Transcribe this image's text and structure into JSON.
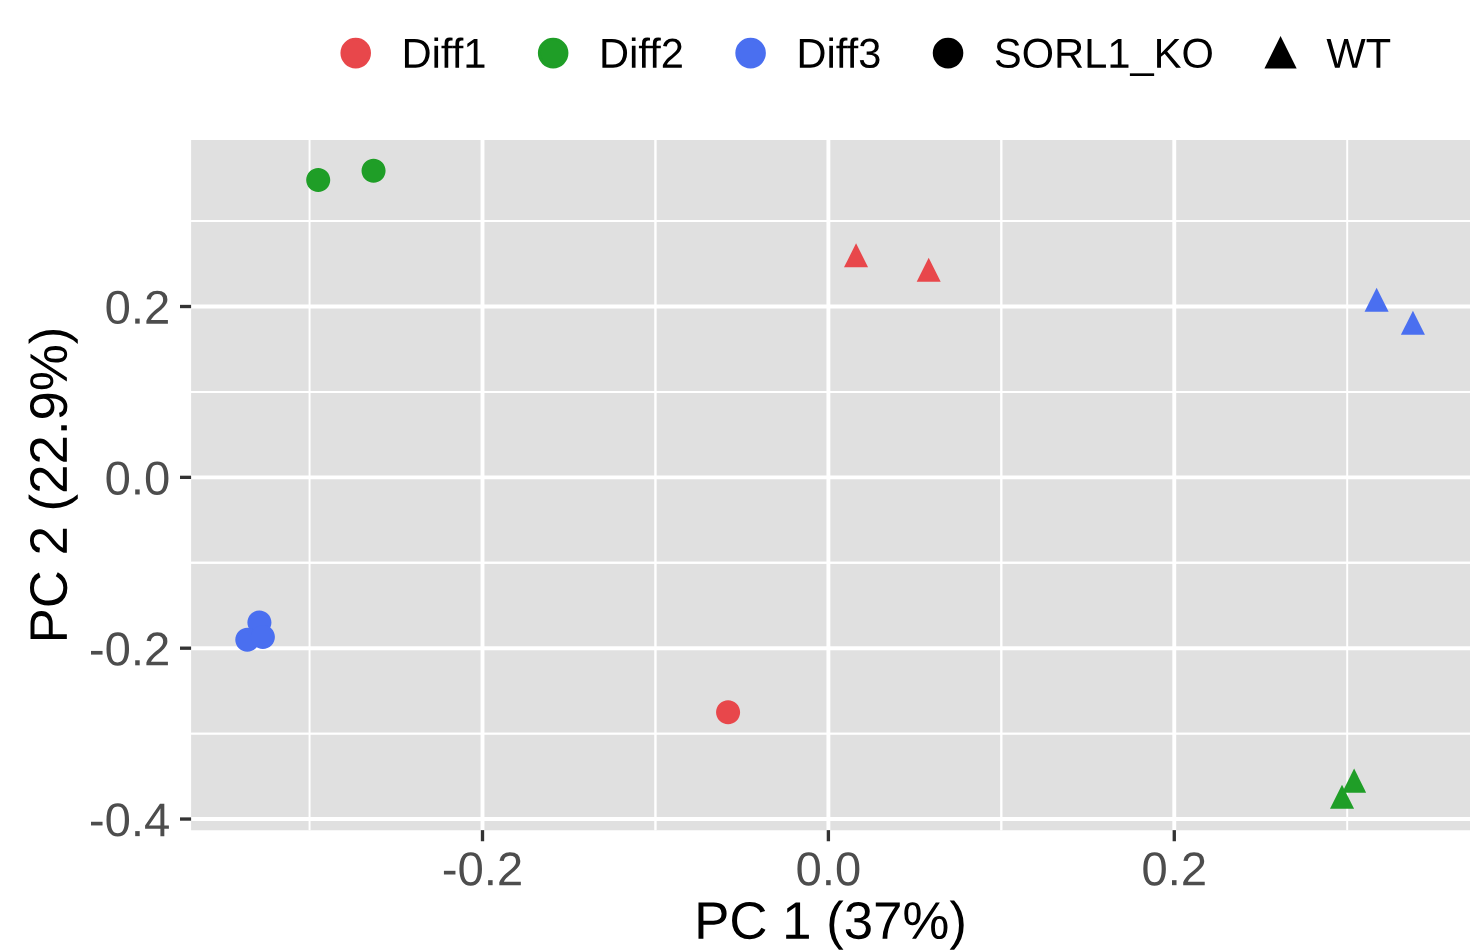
{
  "chart_data": {
    "type": "scatter",
    "xlabel": "PC 1 (37%)",
    "ylabel": "PC 2 (22.9%)",
    "xlim": [
      -0.3685,
      0.371
    ],
    "ylim": [
      -0.413,
      0.395
    ],
    "xticks": [
      -0.2,
      {
        "value": 0,
        "label": "0.0"
      },
      0.2
    ],
    "yticks": [
      -0.4,
      -0.2,
      {
        "value": 0,
        "label": "0.0"
      },
      0.2
    ],
    "grid": true,
    "legend": "top",
    "series": [
      {
        "name": "Diff1",
        "color": "#e8474b",
        "x": [
          0.016,
          0.058,
          -0.058
        ],
        "values": [
          0.26,
          0.243,
          -0.275
        ],
        "marker": [
          "triangle",
          "triangle",
          "circle"
        ]
      },
      {
        "name": "Diff2",
        "color": "#1f9e27",
        "x": [
          -0.295,
          -0.263,
          0.304,
          0.297
        ],
        "values": [
          0.348,
          0.359,
          -0.355,
          -0.374
        ],
        "marker": [
          "circle",
          "circle",
          "triangle",
          "triangle"
        ]
      },
      {
        "name": "Diff3",
        "color": "#4a6ff0",
        "x": [
          0.317,
          0.338,
          -0.329,
          -0.336,
          -0.327
        ],
        "values": [
          0.208,
          0.181,
          -0.17,
          -0.19,
          -0.187
        ],
        "marker": [
          "triangle",
          "triangle",
          "circle",
          "circle",
          "circle"
        ]
      },
      {
        "name": "SORL1_KO",
        "color": "#000000",
        "marker": "circle"
      },
      {
        "name": "WT",
        "color": "#000000",
        "marker": "triangle"
      }
    ]
  }
}
